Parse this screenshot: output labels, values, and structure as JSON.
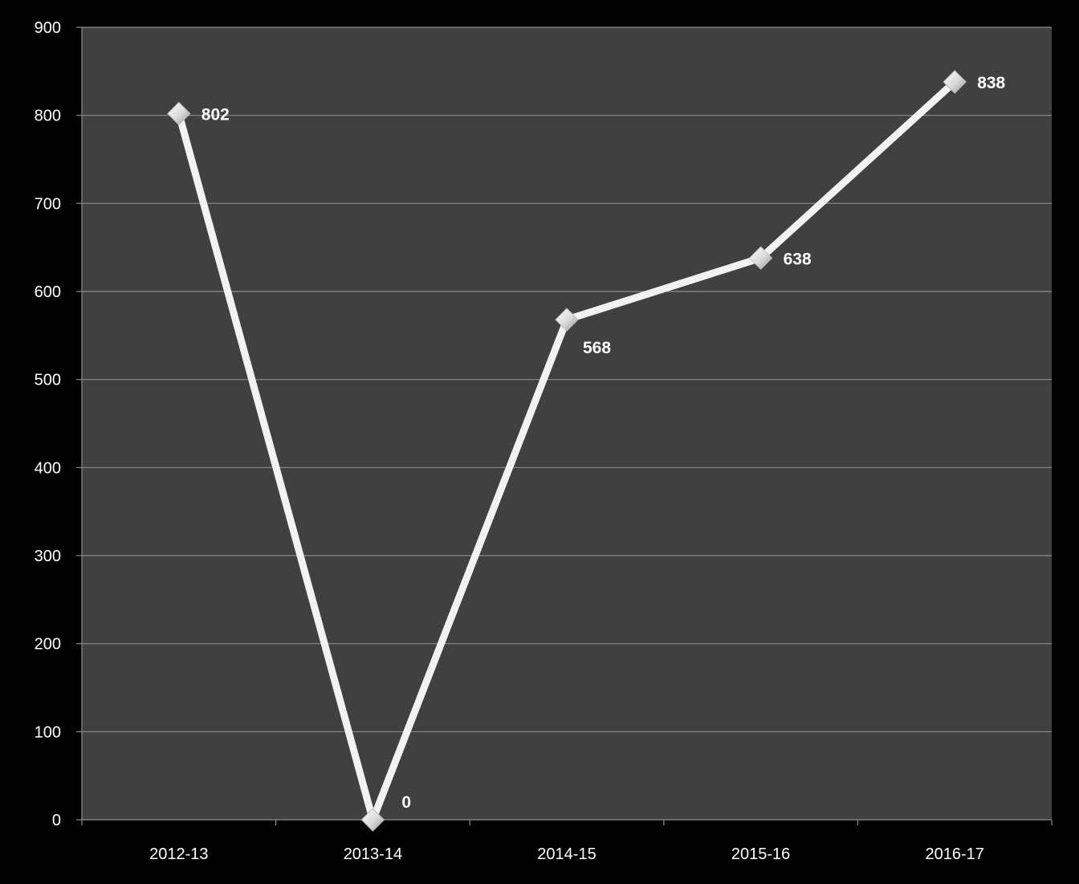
{
  "chart_data": {
    "type": "line",
    "title": "",
    "xlabel": "",
    "ylabel": "",
    "categories": [
      "2012-13",
      "2013-14",
      "2014-15",
      "2015-16",
      "2016-17"
    ],
    "series": [
      {
        "values": [
          802,
          0,
          568,
          638,
          838
        ]
      }
    ],
    "data_labels": [
      "802",
      "0",
      "568",
      "638",
      "838"
    ],
    "ylim": [
      0,
      900
    ],
    "y_ticks": [
      0,
      100,
      200,
      300,
      400,
      500,
      600,
      700,
      800,
      900
    ],
    "y_tick_labels": [
      "0",
      "100",
      "200",
      "300",
      "400",
      "500",
      "600",
      "700",
      "800",
      "900"
    ],
    "grid": true,
    "legend": "none",
    "marker": "diamond",
    "colors": {
      "page_background": "#000000",
      "plot_background": "#404040",
      "gridline": "#8c8c8c",
      "axis": "#8c8c8c",
      "line": "#f2f2f2",
      "marker": "#e6e6e6",
      "text": "#ffffff"
    }
  }
}
